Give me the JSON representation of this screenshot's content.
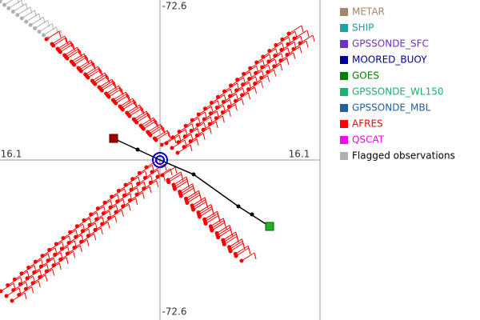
{
  "axes": {
    "top": "-72.6",
    "bottom": "-72.6",
    "left": "16.1",
    "right": "16.1"
  },
  "legend": [
    {
      "label": "METAR",
      "color": "#a08868"
    },
    {
      "label": "SHIP",
      "color": "#20a0a0"
    },
    {
      "label": "GPSSONDE_SFC",
      "color": "#7030c0"
    },
    {
      "label": "MOORED_BUOY",
      "color": "#000090"
    },
    {
      "label": "GOES",
      "color": "#008000"
    },
    {
      "label": "GPSSONDE_WL150",
      "color": "#20b070"
    },
    {
      "label": "GPSSONDE_MBL",
      "color": "#2060a0"
    },
    {
      "label": "AFRES",
      "color": "#ff0000"
    },
    {
      "label": "QSCAT",
      "color": "#ff00ff"
    },
    {
      "label": "Flagged observations",
      "color": "#b0b0b0"
    }
  ]
}
